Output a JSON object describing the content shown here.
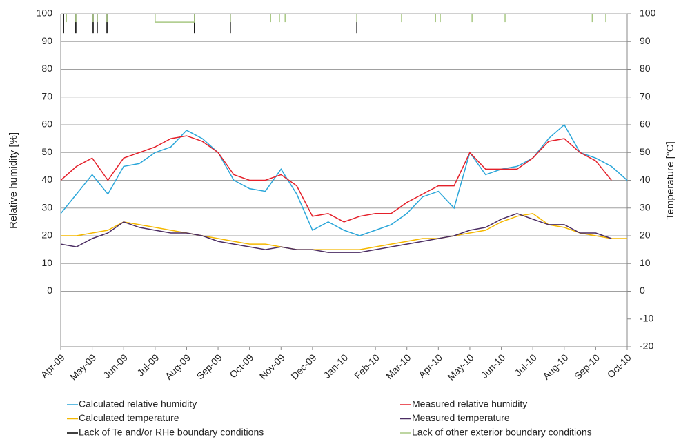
{
  "chart_data": {
    "type": "line",
    "y_label": "Relative humidity [%]",
    "y2_label": "Temperature [°C]",
    "xlim": [
      0,
      18
    ],
    "xticks": [
      {
        "value": 0,
        "label": "Apr-09"
      },
      {
        "value": 1,
        "label": "May-09"
      },
      {
        "value": 2,
        "label": "Jun-09"
      },
      {
        "value": 3,
        "label": "Jul-09"
      },
      {
        "value": 4,
        "label": "Aug-09"
      },
      {
        "value": 5,
        "label": "Sep-09"
      },
      {
        "value": 6,
        "label": "Oct-09"
      },
      {
        "value": 7,
        "label": "Nov-09"
      },
      {
        "value": 8,
        "label": "Dec-09"
      },
      {
        "value": 9,
        "label": "Jan-10"
      },
      {
        "value": 10,
        "label": "Feb-10"
      },
      {
        "value": 11,
        "label": "Mar-10"
      },
      {
        "value": 12,
        "label": "Apr-10"
      },
      {
        "value": 13,
        "label": "May-10"
      },
      {
        "value": 14,
        "label": "Jun-10"
      },
      {
        "value": 15,
        "label": "Jul-10"
      },
      {
        "value": 16,
        "label": "Aug-10"
      },
      {
        "value": 17,
        "label": "Sep-10"
      },
      {
        "value": 18,
        "label": "Oct-10"
      }
    ],
    "ylim": [
      -20,
      100
    ],
    "yticks": [
      0,
      10,
      20,
      30,
      40,
      50,
      60,
      70,
      80,
      90,
      100
    ],
    "y2lim": [
      -20,
      100
    ],
    "y2ticks": [
      -20,
      -10,
      0,
      10,
      20,
      30,
      40,
      50,
      60,
      70,
      80,
      90,
      100
    ],
    "grid": true,
    "x": [
      0,
      0.5,
      1,
      1.5,
      2,
      2.5,
      3,
      3.5,
      4,
      4.5,
      5,
      5.5,
      6,
      6.5,
      7,
      7.5,
      8,
      8.5,
      9,
      9.5,
      10,
      10.5,
      11,
      11.5,
      12,
      12.5,
      13,
      13.5,
      14,
      14.5,
      15,
      15.5,
      16,
      16.5,
      17,
      17.5,
      18
    ],
    "series": [
      {
        "name": "Calculated relative humidity",
        "color": "#2aa6d9",
        "values": [
          28,
          35,
          42,
          35,
          45,
          46,
          50,
          52,
          58,
          55,
          50,
          40,
          37,
          36,
          44,
          35,
          22,
          25,
          22,
          20,
          22,
          24,
          28,
          34,
          36,
          30,
          50,
          42,
          44,
          45,
          48,
          55,
          60,
          50,
          48,
          45,
          40
        ]
      },
      {
        "name": "Measured relative humidity",
        "color": "#e4202a",
        "values": [
          40,
          45,
          48,
          40,
          48,
          50,
          52,
          55,
          56,
          54,
          50,
          42,
          40,
          40,
          42,
          38,
          27,
          28,
          25,
          27,
          28,
          28,
          32,
          35,
          38,
          38,
          50,
          44,
          44,
          44,
          48,
          54,
          55,
          50,
          47,
          40,
          null
        ]
      },
      {
        "name": "Calculated temperature",
        "color": "#f5b800",
        "axis": "y2",
        "values": [
          20,
          20,
          21,
          22,
          25,
          24,
          23,
          22,
          21,
          20,
          19,
          18,
          17,
          17,
          16,
          15,
          15,
          15,
          15,
          15,
          16,
          17,
          18,
          19,
          19,
          20,
          21,
          22,
          25,
          27,
          28,
          24,
          23,
          21,
          20,
          19,
          19
        ]
      },
      {
        "name": "Measured temperature",
        "color": "#4b2d63",
        "axis": "y2",
        "values": [
          17,
          16,
          19,
          21,
          25,
          23,
          22,
          21,
          21,
          20,
          18,
          17,
          16,
          15,
          16,
          15,
          15,
          14,
          14,
          14,
          15,
          16,
          17,
          18,
          19,
          20,
          22,
          23,
          26,
          28,
          26,
          24,
          24,
          21,
          21,
          19,
          null
        ]
      }
    ],
    "events": [
      {
        "name": "Lack of Te and/or RHe boundary conditions",
        "color": "#000000",
        "x": [
          0.09,
          0.48,
          1.03,
          1.16,
          1.47,
          4.25,
          5.39,
          9.41
        ]
      },
      {
        "name": "Lack of other exterior boundary conditions",
        "color": "#a8c883",
        "x": [
          0.18,
          0.48,
          1.03,
          1.16,
          1.47,
          3.0,
          4.25,
          5.39,
          6.67,
          6.95,
          7.13,
          9.41,
          10.83,
          11.91,
          12.06,
          13.07,
          14.12,
          16.89,
          17.32
        ],
        "spans": [
          [
            3.0,
            4.25
          ]
        ]
      }
    ]
  }
}
